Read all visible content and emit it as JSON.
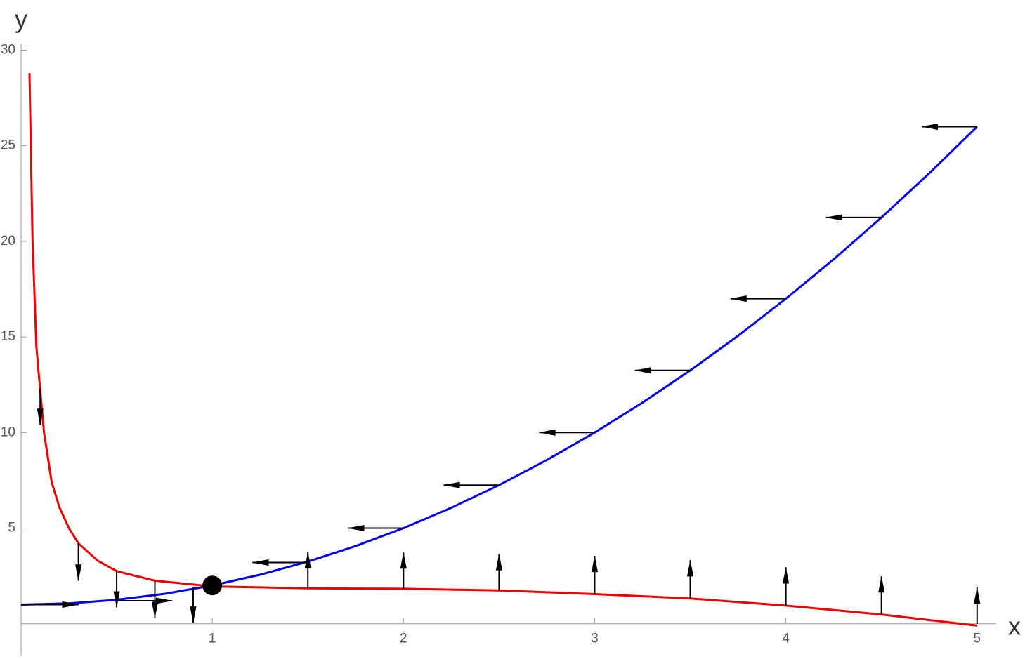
{
  "chart_data": {
    "type": "line",
    "x_label": "x",
    "y_label": "y",
    "xlim": [
      0,
      5.1
    ],
    "ylim": [
      -1.7,
      30.35
    ],
    "xticks": [
      1,
      2,
      3,
      4,
      5
    ],
    "yticks": [
      5,
      10,
      15,
      20,
      25,
      30
    ],
    "series": [
      {
        "color": "#0000ee",
        "x": [
          0,
          0.25,
          0.5,
          0.75,
          1,
          1.25,
          1.5,
          1.75,
          2,
          2.25,
          2.5,
          2.75,
          3,
          3.25,
          3.5,
          3.75,
          4,
          4.25,
          4.5,
          4.75,
          5
        ],
        "values": [
          1,
          1.0625,
          1.25,
          1.5625,
          2,
          2.5625,
          3.25,
          4.0625,
          5,
          6.0625,
          7.25,
          8.5625,
          10,
          11.5625,
          13.25,
          15.0625,
          17,
          19.0625,
          21.25,
          23.5625,
          26
        ]
      },
      {
        "color": "#ee0000",
        "x": [
          0.044,
          0.06,
          0.08,
          0.1,
          0.12,
          0.16,
          0.2,
          0.25,
          0.3,
          0.4,
          0.5,
          0.7,
          1,
          1.5,
          2,
          2.5,
          3,
          3.5,
          4,
          4.5,
          5
        ],
        "values": [
          28.8,
          20,
          14.5,
          12.2,
          10,
          7.4,
          6.1,
          5,
          4.2,
          3.3,
          2.75,
          2.25,
          1.95,
          1.85,
          1.83,
          1.74,
          1.55,
          1.32,
          0.95,
          0.48,
          -0.1
        ]
      }
    ],
    "point": {
      "x": 1,
      "y": 2,
      "color": "#000000"
    },
    "arrows": [
      {
        "x": 0,
        "y": 1,
        "dx": 0.3,
        "dy": 0
      },
      {
        "x": 0.5,
        "y": 1.2,
        "dx": 0.29,
        "dy": 0
      },
      {
        "x": 1.5,
        "y": 3.2,
        "dx": -0.29,
        "dy": 0
      },
      {
        "x": 2,
        "y": 5,
        "dx": -0.29,
        "dy": 0
      },
      {
        "x": 2.5,
        "y": 7.25,
        "dx": -0.29,
        "dy": 0
      },
      {
        "x": 3,
        "y": 10,
        "dx": -0.29,
        "dy": 0
      },
      {
        "x": 3.5,
        "y": 13.25,
        "dx": -0.29,
        "dy": 0
      },
      {
        "x": 4,
        "y": 17,
        "dx": -0.29,
        "dy": 0
      },
      {
        "x": 4.5,
        "y": 21.25,
        "dx": -0.29,
        "dy": 0
      },
      {
        "x": 5,
        "y": 26,
        "dx": -0.29,
        "dy": 0
      },
      {
        "x": 0.1,
        "y": 12.3,
        "dx": 0,
        "dy": -1.9
      },
      {
        "x": 0.3,
        "y": 4.2,
        "dx": 0,
        "dy": -1.95
      },
      {
        "x": 0.5,
        "y": 2.75,
        "dx": 0,
        "dy": -1.9
      },
      {
        "x": 0.7,
        "y": 2.25,
        "dx": 0,
        "dy": -1.95
      },
      {
        "x": 0.9,
        "y": 1.9,
        "dx": 0,
        "dy": -1.85
      },
      {
        "x": 1.5,
        "y": 1.85,
        "dx": 0,
        "dy": 1.9
      },
      {
        "x": 2,
        "y": 1.83,
        "dx": 0,
        "dy": 1.9
      },
      {
        "x": 2.5,
        "y": 1.74,
        "dx": 0,
        "dy": 1.9
      },
      {
        "x": 3,
        "y": 1.55,
        "dx": 0,
        "dy": 2
      },
      {
        "x": 3.5,
        "y": 1.32,
        "dx": 0,
        "dy": 2
      },
      {
        "x": 4,
        "y": 0.95,
        "dx": 0,
        "dy": 2
      },
      {
        "x": 4.5,
        "y": 0.48,
        "dx": 0,
        "dy": 2
      },
      {
        "x": 5,
        "y": 0,
        "dx": 0,
        "dy": 1.9
      }
    ]
  }
}
